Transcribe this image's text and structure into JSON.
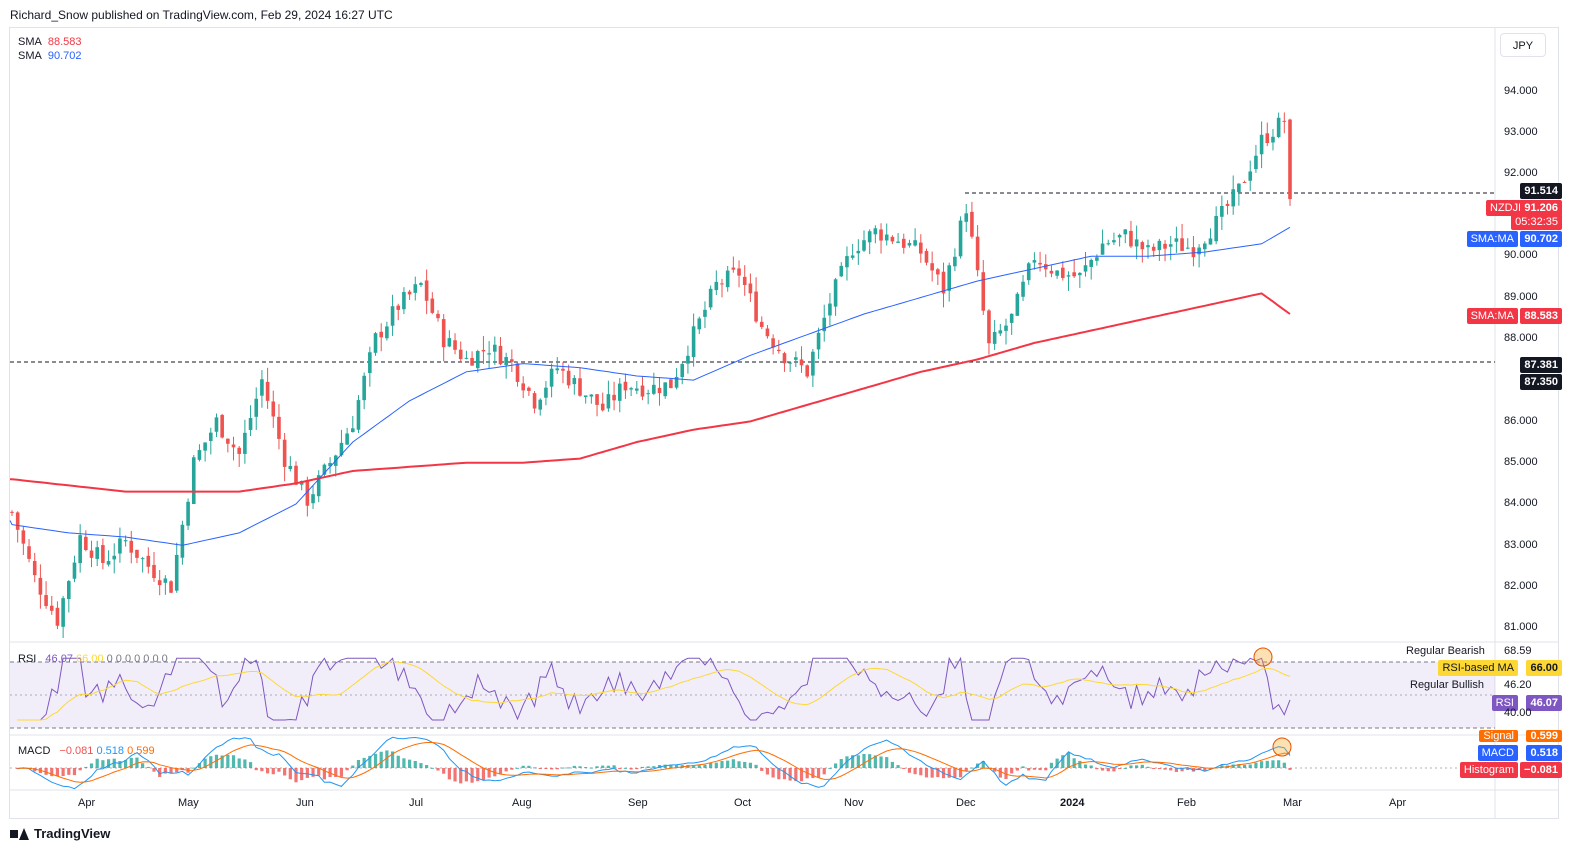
{
  "header": {
    "publisher": "Richard_Snow published on TradingView.com, Feb 29, 2024 16:27 UTC"
  },
  "legend": {
    "sma1": {
      "label": "SMA",
      "value": "88.583",
      "color": "#f23645"
    },
    "sma2": {
      "label": "SMA",
      "value": "90.702",
      "color": "#2962ff"
    }
  },
  "currency_button": "JPY",
  "y_axis": {
    "ticks": [
      "94.000",
      "93.000",
      "92.000",
      "90.000",
      "89.000",
      "88.000",
      "86.000",
      "85.000",
      "84.000",
      "83.000",
      "82.000",
      "81.000"
    ]
  },
  "price_tags": {
    "resistance": "91.514",
    "symbol": "NZDJPY",
    "price": "91.206",
    "countdown": "05:32:35",
    "sma_blue_label": "SMA:MA",
    "sma_blue_value": "90.702",
    "sma_red_label": "SMA:MA",
    "sma_red_value": "88.583",
    "support1": "87.381",
    "support2": "87.350"
  },
  "rsi_pane": {
    "legend_name": "RSI",
    "legend_value1": "46.07",
    "legend_value2": "66.00",
    "legend_tail": "0 0 0 0 0 0 0",
    "labels": {
      "regular_bearish": "Regular Bearish",
      "level_top": "68.59",
      "rsi_ma_label": "RSI-based MA",
      "rsi_ma_value": "66.00",
      "regular_bullish": "Regular Bullish",
      "level_mid": "46.20",
      "rsi_label": "RSI",
      "rsi_value": "46.07",
      "level_low": "40.00"
    }
  },
  "macd_pane": {
    "legend_name": "MACD",
    "legend_hist": "−0.081",
    "legend_macd": "0.518",
    "legend_signal": "0.599",
    "labels": {
      "signal_label": "Signal",
      "signal_value": "0.599",
      "macd_label": "MACD",
      "macd_value": "0.518",
      "hist_label": "Histogram",
      "hist_value": "−0.081"
    }
  },
  "x_axis": {
    "ticks": [
      "Apr",
      "May",
      "Jun",
      "Jul",
      "Aug",
      "Sep",
      "Oct",
      "Nov",
      "Dec",
      "2024",
      "Feb",
      "Mar",
      "Apr"
    ]
  },
  "footer": {
    "brand": "TradingView"
  },
  "colors": {
    "up": "#26a69a",
    "down": "#ef5350",
    "sma_blue": "#2962ff",
    "sma_red": "#f23645",
    "rsi": "#7e57c2",
    "rsi_ma": "#fdd835",
    "macd": "#2196f3",
    "signal": "#ff6d00"
  },
  "chart_data": {
    "type": "candlestick",
    "symbol": "NZDJPY",
    "ylim": [
      80.6,
      95.2
    ],
    "x_labels": [
      "Apr",
      "May",
      "Jun",
      "Jul",
      "Aug",
      "Sep",
      "Oct",
      "Nov",
      "Dec",
      "2024",
      "Feb",
      "Mar",
      "Apr"
    ],
    "close_path": [
      [
        0,
        83.8
      ],
      [
        4,
        82.2
      ],
      [
        8,
        81.2
      ],
      [
        12,
        83.2
      ],
      [
        16,
        82.6
      ],
      [
        20,
        83.1
      ],
      [
        24,
        82.5
      ],
      [
        28,
        82.0
      ],
      [
        32,
        85.0
      ],
      [
        36,
        86.0
      ],
      [
        40,
        85.2
      ],
      [
        44,
        87.0
      ],
      [
        48,
        85.1
      ],
      [
        52,
        84.1
      ],
      [
        56,
        85.0
      ],
      [
        60,
        86.0
      ],
      [
        64,
        88.0
      ],
      [
        68,
        88.8
      ],
      [
        72,
        89.3
      ],
      [
        76,
        88.0
      ],
      [
        80,
        87.5
      ],
      [
        84,
        87.8
      ],
      [
        88,
        87.4
      ],
      [
        92,
        86.5
      ],
      [
        96,
        87.3
      ],
      [
        100,
        86.8
      ],
      [
        104,
        86.3
      ],
      [
        108,
        86.9
      ],
      [
        112,
        86.8
      ],
      [
        116,
        86.9
      ],
      [
        120,
        88.1
      ],
      [
        124,
        89.3
      ],
      [
        128,
        89.6
      ],
      [
        132,
        88.3
      ],
      [
        136,
        87.6
      ],
      [
        140,
        87.2
      ],
      [
        144,
        88.9
      ],
      [
        148,
        90.2
      ],
      [
        152,
        90.6
      ],
      [
        156,
        90.4
      ],
      [
        160,
        90.1
      ],
      [
        164,
        89.2
      ],
      [
        168,
        91.2
      ],
      [
        172,
        87.8
      ],
      [
        176,
        88.5
      ],
      [
        180,
        90.0
      ],
      [
        184,
        89.6
      ],
      [
        188,
        89.5
      ],
      [
        192,
        90.3
      ],
      [
        196,
        90.5
      ],
      [
        200,
        90.1
      ],
      [
        204,
        90.3
      ],
      [
        208,
        90.2
      ],
      [
        212,
        90.8
      ],
      [
        216,
        91.6
      ],
      [
        220,
        92.8
      ],
      [
        224,
        93.3
      ],
      [
        225,
        91.2
      ]
    ],
    "sma_50": [
      [
        0,
        83.5
      ],
      [
        10,
        83.3
      ],
      [
        20,
        83.2
      ],
      [
        30,
        83.0
      ],
      [
        40,
        83.3
      ],
      [
        50,
        84.0
      ],
      [
        60,
        85.5
      ],
      [
        70,
        86.5
      ],
      [
        80,
        87.2
      ],
      [
        90,
        87.4
      ],
      [
        100,
        87.3
      ],
      [
        110,
        87.1
      ],
      [
        120,
        87.0
      ],
      [
        130,
        87.6
      ],
      [
        140,
        88.1
      ],
      [
        150,
        88.6
      ],
      [
        160,
        89.0
      ],
      [
        170,
        89.4
      ],
      [
        180,
        89.7
      ],
      [
        190,
        90.0
      ],
      [
        200,
        90.0
      ],
      [
        210,
        90.1
      ],
      [
        220,
        90.3
      ],
      [
        225,
        90.7
      ]
    ],
    "sma_200": [
      [
        0,
        84.6
      ],
      [
        20,
        84.3
      ],
      [
        30,
        84.3
      ],
      [
        40,
        84.3
      ],
      [
        50,
        84.5
      ],
      [
        60,
        84.8
      ],
      [
        70,
        84.9
      ],
      [
        80,
        85.0
      ],
      [
        90,
        85.0
      ],
      [
        100,
        85.1
      ],
      [
        110,
        85.5
      ],
      [
        120,
        85.8
      ],
      [
        130,
        86.0
      ],
      [
        140,
        86.4
      ],
      [
        150,
        86.8
      ],
      [
        160,
        87.2
      ],
      [
        170,
        87.5
      ],
      [
        180,
        87.9
      ],
      [
        190,
        88.2
      ],
      [
        200,
        88.5
      ],
      [
        210,
        88.8
      ],
      [
        220,
        89.1
      ],
      [
        225,
        88.6
      ]
    ],
    "levels": {
      "resistance": 91.514,
      "support": 87.381
    },
    "rsi_levels": [
      68.59,
      66.0,
      46.2,
      46.07,
      40.0
    ],
    "macd_last": {
      "macd": 0.518,
      "signal": 0.599,
      "histogram": -0.081
    }
  }
}
